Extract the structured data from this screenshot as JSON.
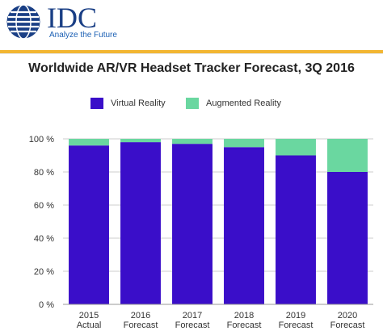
{
  "header": {
    "brand": "IDC",
    "tagline": "Analyze the Future"
  },
  "colors": {
    "virtual_reality": "#3a0ec9",
    "augmented_reality": "#6ad7a0",
    "brand_blue": "#1a3f85",
    "accent_bar": "#f2b632",
    "icon": "globe-icon"
  },
  "chart_data": {
    "type": "bar",
    "stacked": true,
    "title": "Worldwide AR/VR Headset Tracker Forecast, 3Q 2016",
    "categories": [
      [
        "2015",
        "Actual"
      ],
      [
        "2016",
        "Forecast"
      ],
      [
        "2017",
        "Forecast"
      ],
      [
        "2018",
        "Forecast"
      ],
      [
        "2019",
        "Forecast"
      ],
      [
        "2020",
        "Forecast"
      ]
    ],
    "series": [
      {
        "name": "Virtual Reality",
        "values": [
          96,
          98,
          97,
          95,
          90,
          80
        ]
      },
      {
        "name": "Augmented Reality",
        "values": [
          4,
          2,
          3,
          5,
          10,
          20
        ]
      }
    ],
    "ylim": [
      0,
      100
    ],
    "yticks": [
      "0 %",
      "20 %",
      "40 %",
      "60 %",
      "80 %",
      "100 %"
    ],
    "grid": true,
    "legend_position": "top"
  }
}
